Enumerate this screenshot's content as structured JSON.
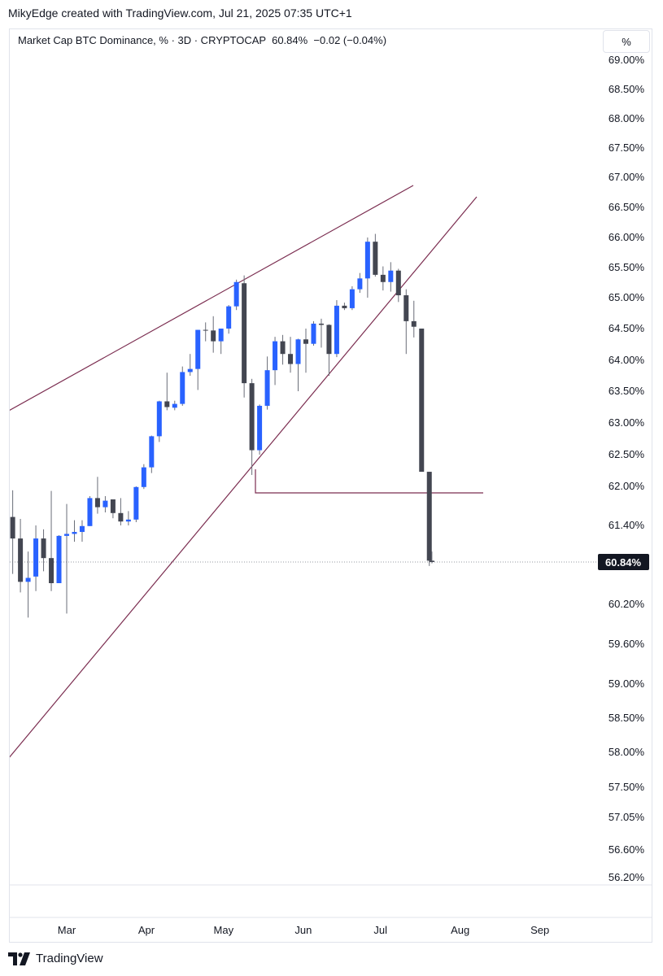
{
  "header": {
    "attribution": "MikyEdge created with TradingView.com, Jul 21, 2025 07:35 UTC+1"
  },
  "legend": {
    "text": "Market Cap BTC Dominance, % · 3D · CRYPTOCAP  60.84%  −0.02 (−0.04%)"
  },
  "toolbar": {
    "unit_label": "%"
  },
  "footer": {
    "brand": "TradingView"
  },
  "colors": {
    "up": "#2962ff",
    "down": "#434651",
    "trendline": "#7b2d50",
    "grid_text": "#131722"
  },
  "chart_data": {
    "type": "candlestick",
    "title": "Market Cap BTC Dominance, % · 3D · CRYPTOCAP",
    "last_value": 60.84,
    "last_label": "60.84%",
    "change": "−0.02 (−0.04%)",
    "y_ticks": [
      69.0,
      68.5,
      68.0,
      67.5,
      67.0,
      66.5,
      66.0,
      65.5,
      65.0,
      64.5,
      64.0,
      63.5,
      63.0,
      62.5,
      62.0,
      61.4,
      60.84,
      60.2,
      59.6,
      59.0,
      58.5,
      58.0,
      57.5,
      57.05,
      56.6,
      56.2
    ],
    "y_tick_labels": [
      "69.00%",
      "68.50%",
      "68.00%",
      "67.50%",
      "67.00%",
      "66.50%",
      "66.00%",
      "65.50%",
      "65.00%",
      "64.50%",
      "64.00%",
      "63.50%",
      "63.00%",
      "62.50%",
      "62.00%",
      "61.40%",
      "60.84%",
      "60.20%",
      "59.60%",
      "59.00%",
      "58.50%",
      "58.00%",
      "57.50%",
      "57.05%",
      "56.60%",
      "56.20%"
    ],
    "x_labels": [
      {
        "label": "Mar",
        "date": "2025-03-01"
      },
      {
        "label": "Apr",
        "date": "2025-04-01"
      },
      {
        "label": "May",
        "date": "2025-05-01"
      },
      {
        "label": "Jun",
        "date": "2025-06-01"
      },
      {
        "label": "Jul",
        "date": "2025-07-01"
      },
      {
        "label": "Aug",
        "date": "2025-08-01"
      },
      {
        "label": "Sep",
        "date": "2025-09-01"
      }
    ],
    "candles": [
      {
        "date": "2025-02-08",
        "o": 61.53,
        "h": 61.94,
        "l": 60.66,
        "c": 61.2
      },
      {
        "date": "2025-02-11",
        "o": 61.2,
        "h": 61.5,
        "l": 60.38,
        "c": 60.54
      },
      {
        "date": "2025-02-14",
        "o": 60.54,
        "h": 61.0,
        "l": 60.0,
        "c": 60.6
      },
      {
        "date": "2025-02-17",
        "o": 60.62,
        "h": 61.4,
        "l": 60.4,
        "c": 61.2
      },
      {
        "date": "2025-02-20",
        "o": 61.2,
        "h": 61.34,
        "l": 60.7,
        "c": 60.9
      },
      {
        "date": "2025-02-23",
        "o": 60.9,
        "h": 61.93,
        "l": 60.4,
        "c": 60.52
      },
      {
        "date": "2025-02-26",
        "o": 60.52,
        "h": 61.25,
        "l": 60.52,
        "c": 61.24
      },
      {
        "date": "2025-03-01",
        "o": 61.24,
        "h": 61.73,
        "l": 60.06,
        "c": 61.27
      },
      {
        "date": "2025-03-04",
        "o": 61.27,
        "h": 61.48,
        "l": 61.15,
        "c": 61.3
      },
      {
        "date": "2025-03-07",
        "o": 61.3,
        "h": 61.48,
        "l": 61.15,
        "c": 61.39
      },
      {
        "date": "2025-03-10",
        "o": 61.39,
        "h": 61.85,
        "l": 61.39,
        "c": 61.82
      },
      {
        "date": "2025-03-13",
        "o": 61.82,
        "h": 62.15,
        "l": 61.58,
        "c": 61.68
      },
      {
        "date": "2025-03-16",
        "o": 61.68,
        "h": 61.85,
        "l": 61.6,
        "c": 61.78
      },
      {
        "date": "2025-03-19",
        "o": 61.8,
        "h": 61.8,
        "l": 61.51,
        "c": 61.59
      },
      {
        "date": "2025-03-22",
        "o": 61.59,
        "h": 61.82,
        "l": 61.4,
        "c": 61.46
      },
      {
        "date": "2025-03-25",
        "o": 61.46,
        "h": 61.62,
        "l": 61.4,
        "c": 61.49
      },
      {
        "date": "2025-03-28",
        "o": 61.49,
        "h": 62.0,
        "l": 61.45,
        "c": 61.99
      },
      {
        "date": "2025-03-31",
        "o": 61.99,
        "h": 62.35,
        "l": 61.96,
        "c": 62.3
      },
      {
        "date": "2025-04-03",
        "o": 62.3,
        "h": 62.8,
        "l": 62.21,
        "c": 62.79
      },
      {
        "date": "2025-04-06",
        "o": 62.79,
        "h": 63.35,
        "l": 62.7,
        "c": 63.34
      },
      {
        "date": "2025-04-09",
        "o": 63.34,
        "h": 63.8,
        "l": 63.2,
        "c": 63.25
      },
      {
        "date": "2025-04-12",
        "o": 63.24,
        "h": 63.35,
        "l": 63.2,
        "c": 63.3
      },
      {
        "date": "2025-04-15",
        "o": 63.3,
        "h": 63.9,
        "l": 63.27,
        "c": 63.81
      },
      {
        "date": "2025-04-18",
        "o": 63.81,
        "h": 64.1,
        "l": 63.75,
        "c": 63.86
      },
      {
        "date": "2025-04-21",
        "o": 63.86,
        "h": 64.48,
        "l": 63.52,
        "c": 64.48
      },
      {
        "date": "2025-04-24",
        "o": 64.48,
        "h": 64.6,
        "l": 64.3,
        "c": 64.47
      },
      {
        "date": "2025-04-27",
        "o": 64.47,
        "h": 64.7,
        "l": 64.12,
        "c": 64.3
      },
      {
        "date": "2025-04-30",
        "o": 64.3,
        "h": 64.5,
        "l": 64.1,
        "c": 64.5
      },
      {
        "date": "2025-05-03",
        "o": 64.5,
        "h": 64.88,
        "l": 64.42,
        "c": 64.86
      },
      {
        "date": "2025-05-06",
        "o": 64.86,
        "h": 65.3,
        "l": 64.8,
        "c": 65.26
      },
      {
        "date": "2025-05-09",
        "o": 65.24,
        "h": 65.37,
        "l": 63.4,
        "c": 63.63
      },
      {
        "date": "2025-05-12",
        "o": 63.63,
        "h": 63.7,
        "l": 62.18,
        "c": 62.57
      },
      {
        "date": "2025-05-15",
        "o": 62.57,
        "h": 63.29,
        "l": 62.5,
        "c": 63.27
      },
      {
        "date": "2025-05-18",
        "o": 63.27,
        "h": 64.06,
        "l": 63.21,
        "c": 63.84
      },
      {
        "date": "2025-05-21",
        "o": 63.84,
        "h": 64.37,
        "l": 63.6,
        "c": 64.3
      },
      {
        "date": "2025-05-24",
        "o": 64.3,
        "h": 64.4,
        "l": 63.93,
        "c": 64.1
      },
      {
        "date": "2025-05-27",
        "o": 64.1,
        "h": 64.37,
        "l": 63.8,
        "c": 63.94
      },
      {
        "date": "2025-05-30",
        "o": 63.94,
        "h": 64.34,
        "l": 63.5,
        "c": 64.33
      },
      {
        "date": "2025-06-02",
        "o": 64.33,
        "h": 64.5,
        "l": 63.8,
        "c": 64.26
      },
      {
        "date": "2025-06-05",
        "o": 64.26,
        "h": 64.62,
        "l": 64.23,
        "c": 64.58
      },
      {
        "date": "2025-06-08",
        "o": 64.58,
        "h": 64.66,
        "l": 64.2,
        "c": 64.56
      },
      {
        "date": "2025-06-11",
        "o": 64.56,
        "h": 64.57,
        "l": 63.75,
        "c": 64.1
      },
      {
        "date": "2025-06-14",
        "o": 64.1,
        "h": 64.96,
        "l": 64.05,
        "c": 64.87
      },
      {
        "date": "2025-06-17",
        "o": 64.87,
        "h": 64.92,
        "l": 64.8,
        "c": 64.83
      },
      {
        "date": "2025-06-20",
        "o": 64.83,
        "h": 65.19,
        "l": 64.8,
        "c": 65.14
      },
      {
        "date": "2025-06-23",
        "o": 65.14,
        "h": 65.41,
        "l": 65.08,
        "c": 65.32
      },
      {
        "date": "2025-06-26",
        "o": 65.32,
        "h": 66.0,
        "l": 65.0,
        "c": 65.93
      },
      {
        "date": "2025-06-29",
        "o": 65.93,
        "h": 66.06,
        "l": 65.35,
        "c": 65.38
      },
      {
        "date": "2025-07-02",
        "o": 65.38,
        "h": 65.52,
        "l": 65.12,
        "c": 65.26
      },
      {
        "date": "2025-07-05",
        "o": 65.26,
        "h": 65.59,
        "l": 65.1,
        "c": 65.45
      },
      {
        "date": "2025-07-08",
        "o": 65.45,
        "h": 65.48,
        "l": 64.93,
        "c": 65.04
      },
      {
        "date": "2025-07-11",
        "o": 65.04,
        "h": 65.14,
        "l": 64.1,
        "c": 64.62
      },
      {
        "date": "2025-07-14",
        "o": 64.62,
        "h": 64.95,
        "l": 64.36,
        "c": 64.53
      },
      {
        "date": "2025-07-17",
        "o": 64.5,
        "h": 64.5,
        "l": 62.23,
        "c": 62.23
      },
      {
        "date": "2025-07-20",
        "o": 62.23,
        "h": 62.23,
        "l": 60.78,
        "c": 60.86
      },
      {
        "date": "2025-07-21",
        "o": 60.86,
        "h": 61.0,
        "l": 60.82,
        "c": 60.84
      }
    ],
    "grid": false,
    "scale": "percent"
  }
}
